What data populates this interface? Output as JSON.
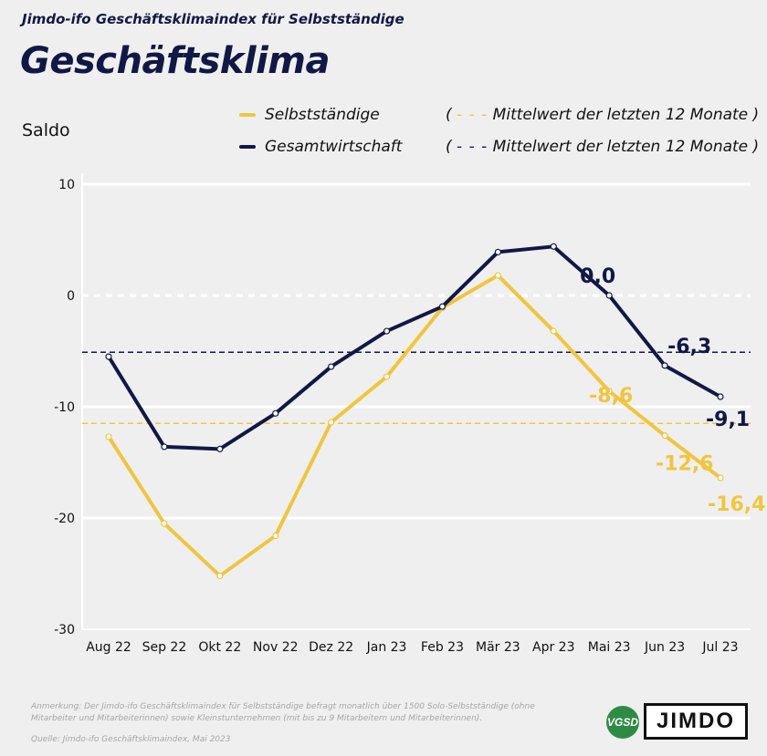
{
  "header": {
    "subtitle": "Jimdo-ifo Geschäftsklimaindex für Selbstständige",
    "title": "Geschäftsklima"
  },
  "legend": {
    "series1_label": "Selbstständige",
    "series2_label": "Gesamtwirtschaft",
    "mean1_label": "Mittelwert der letzten 12 Monate",
    "mean2_label": "Mittelwert der letzten 12 Monate",
    "open_paren": "(",
    "close_paren": ")",
    "dashes": "- - -"
  },
  "footer": {
    "note": "Anmerkung: Der Jimdo-ifo Geschäftsklimaindex für Selbstständige befragt monatlich über 1500 Solo-Selbstständige (ohne Mitarbeiter und Mitarbeiterinnen) sowie Kleinstunternehmen (mit bis zu 9 Mitarbeitern und Mitarbeiterinnen).",
    "source": "Quelle: Jimdo-ifo Geschäftsklimaindex, Mai 2023",
    "logo_vgsd": "VGSD",
    "logo_jimdo": "JIMDO"
  },
  "colors": {
    "selbststaendige": "#f0c53f",
    "gesamtwirtschaft": "#121845",
    "grid": "#ffffff",
    "background": "#efefef"
  },
  "chart_data": {
    "type": "line",
    "ylabel": "Saldo",
    "ylim": [
      -30,
      10
    ],
    "yticks": [
      10,
      0,
      -10,
      -20,
      -30
    ],
    "categories": [
      "Aug 22",
      "Sep 22",
      "Okt 22",
      "Nov 22",
      "Dez 22",
      "Jan 23",
      "Feb 23",
      "Mär 23",
      "Apr 23",
      "Mai 23",
      "Jun 23",
      "Jul 23"
    ],
    "series": [
      {
        "name": "Selbstständige",
        "color": "#f0c53f",
        "values": [
          -12.7,
          -20.5,
          -25.2,
          -21.6,
          -11.4,
          -7.3,
          -1.1,
          1.8,
          -3.2,
          -8.6,
          -12.6,
          -16.4
        ],
        "labeled_points": [
          {
            "index": 9,
            "label": "-8,6"
          },
          {
            "index": 10,
            "label": "-12,6"
          },
          {
            "index": 11,
            "label": "-16,4"
          }
        ],
        "mean": -11.5
      },
      {
        "name": "Gesamtwirtschaft",
        "color": "#121845",
        "values": [
          -5.5,
          -13.6,
          -13.8,
          -10.6,
          -6.4,
          -3.2,
          -1.0,
          3.9,
          4.4,
          0.0,
          -6.3,
          -9.1
        ],
        "labeled_points": [
          {
            "index": 9,
            "label": "0,0"
          },
          {
            "index": 10,
            "label": "-6,3"
          },
          {
            "index": 11,
            "label": "-9,1"
          }
        ],
        "mean": -5.1
      }
    ],
    "grid": true,
    "legend_position": "top"
  }
}
